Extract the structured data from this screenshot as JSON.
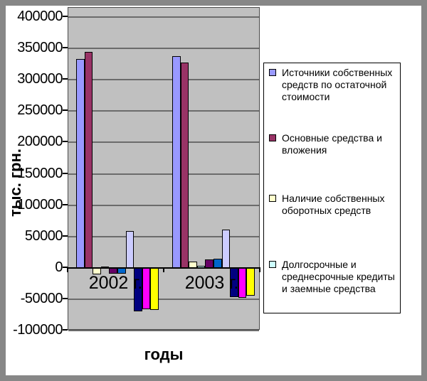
{
  "chart_data": {
    "type": "bar",
    "title": "",
    "xlabel": "годы",
    "ylabel": "тыс. грн.",
    "categories": [
      "2002 г.",
      "2003 г."
    ],
    "ylim": [
      -100000,
      400000
    ],
    "yticks": [
      400000,
      350000,
      300000,
      250000,
      200000,
      150000,
      100000,
      50000,
      0,
      -50000,
      -100000
    ],
    "grid": true,
    "legend_position": "right",
    "plot_bg": "#c0c0c0",
    "grid_color": "#6b6b6b",
    "series": [
      {
        "name": "Источники собственных средств по остаточной стоимости",
        "color": "#9999ff",
        "in_legend": true,
        "values": [
          333000,
          338000
        ]
      },
      {
        "name": "Основные средства и вложения",
        "color": "#993366",
        "in_legend": true,
        "values": [
          344000,
          328000
        ]
      },
      {
        "name": "Наличие собственных оборотных средств",
        "color": "#ffffcc",
        "in_legend": true,
        "values": [
          -11000,
          10000
        ]
      },
      {
        "name": "Долгосрочные и среднесрочные кредиты и заемные средства",
        "color": "#ccffff",
        "in_legend": true,
        "values": [
          2000,
          3000
        ]
      },
      {
        "name": "",
        "color": "#660066",
        "in_legend": false,
        "values": [
          -9000,
          13000
        ]
      },
      {
        "name": "",
        "color": "#0066cc",
        "in_legend": false,
        "values": [
          -9000,
          15000
        ]
      },
      {
        "name": "",
        "color": "#ccccff",
        "in_legend": false,
        "values": [
          59000,
          61000
        ]
      },
      {
        "name": "",
        "color": "#000080",
        "in_legend": false,
        "values": [
          -69000,
          -47000
        ]
      },
      {
        "name": "",
        "color": "#ff00ff",
        "in_legend": false,
        "values": [
          -66000,
          -48000
        ]
      },
      {
        "name": "",
        "color": "#ffff00",
        "in_legend": false,
        "values": [
          -67000,
          -45000
        ]
      }
    ]
  }
}
